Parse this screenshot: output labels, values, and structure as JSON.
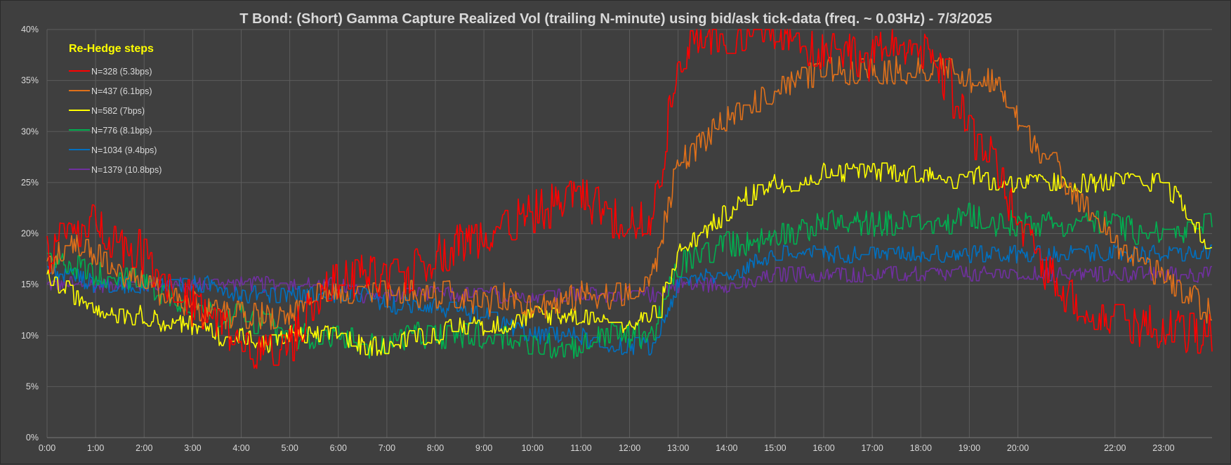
{
  "chart_data": {
    "type": "line",
    "title": "T Bond: (Short) Gamma Capture Realized Vol (trailing N-minute) using bid/ask tick-data (freq. ~ 0.03Hz) - 7/3/2025",
    "xlabel": "",
    "ylabel": "",
    "xlim": [
      0,
      24
    ],
    "ylim": [
      0,
      40
    ],
    "y_unit": "%",
    "grid": true,
    "legend_position": "top-left",
    "legend_title": "Re-Hedge steps",
    "x_ticks": [
      "0:00",
      "1:00",
      "2:00",
      "3:00",
      "4:00",
      "5:00",
      "6:00",
      "7:00",
      "8:00",
      "9:00",
      "10:00",
      "11:00",
      "12:00",
      "13:00",
      "14:00",
      "15:00",
      "16:00",
      "17:00",
      "18:00",
      "19:00",
      "20:00",
      "22:00",
      "23:00"
    ],
    "x_tick_hours": [
      0,
      1,
      2,
      3,
      4,
      5,
      6,
      7,
      8,
      9,
      10,
      11,
      12,
      13,
      14,
      15,
      16,
      17,
      18,
      19,
      20,
      22,
      23
    ],
    "y_ticks": [
      "0%",
      "5%",
      "10%",
      "15%",
      "20%",
      "25%",
      "30%",
      "35%",
      "40%"
    ],
    "y_tick_values": [
      0,
      5,
      10,
      15,
      20,
      25,
      30,
      35,
      40
    ],
    "x_hours": [
      0,
      0.5,
      1,
      1.5,
      2,
      2.5,
      3,
      3.5,
      4,
      4.5,
      5,
      5.5,
      6,
      6.5,
      7,
      7.5,
      8,
      8.5,
      9,
      9.5,
      10,
      10.5,
      11,
      11.5,
      12,
      12.5,
      13,
      13.5,
      14,
      14.5,
      15,
      15.5,
      16,
      16.5,
      17,
      17.5,
      18,
      18.5,
      19,
      19.5,
      20,
      20.5,
      21,
      21.5,
      22,
      22.5,
      23,
      23.5,
      24
    ],
    "series": [
      {
        "name": "N=328 (5.3bps)",
        "color": "#ff0000",
        "noise": 2.2,
        "values": [
          18,
          20,
          21,
          19,
          18,
          15,
          13,
          11,
          10,
          8,
          9,
          14,
          15,
          16,
          15,
          16,
          18,
          19,
          20,
          21,
          22,
          23,
          24,
          22,
          21,
          22,
          37,
          40,
          38,
          40,
          40,
          39,
          38,
          38,
          37,
          39,
          38,
          35,
          30,
          27,
          21,
          17,
          14,
          12,
          11,
          11,
          11,
          10,
          10
        ]
      },
      {
        "name": "N=437 (6.1bps)",
        "color": "#e0701a",
        "noise": 1.4,
        "values": [
          17,
          19,
          18,
          16,
          15,
          14,
          13,
          12,
          12,
          12,
          12,
          14,
          14,
          14,
          14,
          14,
          14,
          14,
          13,
          14,
          13,
          13,
          14,
          14,
          14,
          16,
          27,
          29,
          31,
          33,
          34,
          35,
          36,
          36,
          36,
          36,
          36,
          36,
          35,
          35,
          31,
          28,
          25,
          22,
          19,
          17,
          16,
          14,
          12
        ]
      },
      {
        "name": "N=582 (7bps)",
        "color": "#ffff00",
        "noise": 1.0,
        "values": [
          16,
          14,
          13,
          12,
          12,
          11,
          11,
          10,
          10,
          9,
          10,
          10,
          10,
          9,
          9,
          10,
          10,
          11,
          11,
          11,
          12,
          12,
          12,
          12,
          11,
          12,
          18,
          20,
          22,
          24,
          25,
          25,
          26,
          26,
          26,
          26,
          26,
          25,
          26,
          25,
          25,
          25,
          25,
          25,
          25,
          25,
          25,
          22,
          18
        ]
      },
      {
        "name": "N=776 (8.1bps)",
        "color": "#00b050",
        "noise": 1.3,
        "values": [
          17,
          17,
          16,
          16,
          15,
          14,
          13,
          12,
          12,
          11,
          10,
          10,
          10,
          9,
          9,
          10,
          10,
          10,
          10,
          10,
          9,
          9,
          9,
          10,
          10,
          10,
          17,
          18,
          19,
          19,
          20,
          20,
          21,
          21,
          21,
          21,
          21,
          21,
          22,
          21,
          21,
          21,
          21,
          21,
          21,
          20,
          20,
          20,
          21
        ]
      },
      {
        "name": "N=1034 (9.4bps)",
        "color": "#0070c0",
        "noise": 0.9,
        "values": [
          16,
          16,
          15,
          15,
          15,
          15,
          15,
          15,
          14,
          14,
          14,
          14,
          14,
          14,
          13,
          13,
          13,
          12,
          12,
          11,
          10,
          10,
          10,
          9,
          9,
          9,
          15,
          16,
          16,
          17,
          18,
          18,
          18,
          18,
          18,
          18,
          18,
          18,
          18,
          18,
          18,
          18,
          18,
          18,
          18,
          18,
          18,
          18,
          18
        ]
      },
      {
        "name": "N=1379 (10.8bps)",
        "color": "#7030a0",
        "noise": 0.8,
        "values": [
          15,
          15,
          15,
          15,
          15,
          15,
          15,
          15,
          15,
          15,
          15,
          15,
          15,
          14,
          14,
          14,
          14,
          14,
          14,
          14,
          14,
          14,
          14,
          14,
          14,
          14,
          15,
          15,
          15,
          15,
          16,
          16,
          16,
          16,
          16,
          16,
          16,
          16,
          16,
          16,
          16,
          16,
          16,
          16,
          16,
          16,
          16,
          16,
          16
        ]
      }
    ]
  }
}
